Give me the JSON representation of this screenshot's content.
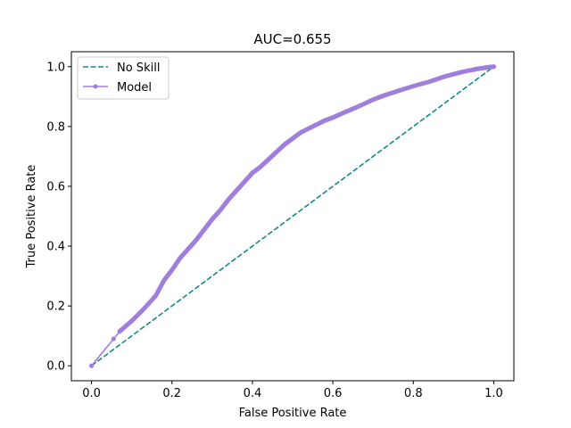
{
  "chart_data": {
    "type": "line",
    "title": "AUC=0.655",
    "xlabel": "False Positive Rate",
    "ylabel": "True Positive Rate",
    "xlim": [
      -0.05,
      1.05
    ],
    "ylim": [
      -0.05,
      1.05
    ],
    "xticks": [
      0.0,
      0.2,
      0.4,
      0.6,
      0.8,
      1.0
    ],
    "yticks": [
      0.0,
      0.2,
      0.4,
      0.6,
      0.8,
      1.0
    ],
    "xtick_labels": [
      "0.0",
      "0.2",
      "0.4",
      "0.6",
      "0.8",
      "1.0"
    ],
    "ytick_labels": [
      "0.0",
      "0.2",
      "0.4",
      "0.6",
      "0.8",
      "1.0"
    ],
    "grid": false,
    "legend_position": "top-left",
    "series": [
      {
        "name": "No Skill",
        "color": "#13898a",
        "style": "dashed",
        "marker": "none",
        "x": [
          0.0,
          1.0
        ],
        "y": [
          0.0,
          1.0
        ]
      },
      {
        "name": "Model",
        "color": "#a07fdc",
        "style": "solid",
        "marker": "dot",
        "x": [
          0.0,
          0.055,
          0.07,
          0.1,
          0.13,
          0.16,
          0.18,
          0.2,
          0.22,
          0.24,
          0.26,
          0.28,
          0.3,
          0.32,
          0.34,
          0.36,
          0.38,
          0.4,
          0.42,
          0.44,
          0.46,
          0.48,
          0.5,
          0.52,
          0.55,
          0.58,
          0.6,
          0.63,
          0.66,
          0.7,
          0.73,
          0.76,
          0.8,
          0.84,
          0.88,
          0.92,
          0.96,
          0.98,
          1.0
        ],
        "y": [
          0.0,
          0.09,
          0.115,
          0.15,
          0.19,
          0.235,
          0.285,
          0.32,
          0.36,
          0.39,
          0.42,
          0.455,
          0.49,
          0.52,
          0.555,
          0.585,
          0.615,
          0.645,
          0.665,
          0.69,
          0.715,
          0.74,
          0.76,
          0.78,
          0.8,
          0.82,
          0.83,
          0.848,
          0.865,
          0.89,
          0.905,
          0.918,
          0.935,
          0.95,
          0.968,
          0.982,
          0.993,
          0.997,
          1.0
        ]
      }
    ]
  }
}
